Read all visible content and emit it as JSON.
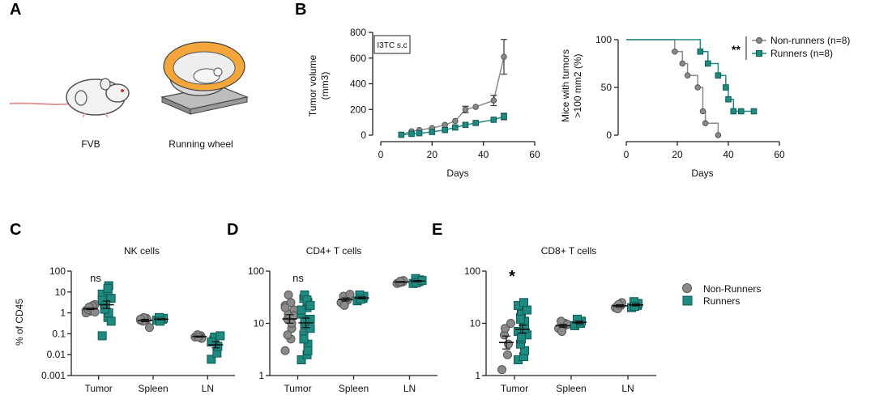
{
  "panels": {
    "A": {
      "letter": "A",
      "caption_fvb": "FVB",
      "caption_wheel": "Running wheel"
    },
    "B": {
      "letter": "B"
    },
    "C": {
      "letter": "C"
    },
    "D": {
      "letter": "D"
    },
    "E": {
      "letter": "E"
    }
  },
  "legend_bottom": {
    "nonrunners": "Non-Runners",
    "runners": "Runners"
  },
  "colors": {
    "nonrunners": "#8a8a8a",
    "runners": "#1e8a80",
    "axis": "#222222"
  },
  "chart_data": [
    {
      "id": "tumor-volume",
      "type": "line",
      "title": "",
      "annotation": "I3TC s.c",
      "xlabel": "Days",
      "ylabel_line1": "Tumor volume",
      "ylabel_line2": "(mm3)",
      "xlim": [
        0,
        60
      ],
      "ylim": [
        0,
        800
      ],
      "xticks": [
        0,
        20,
        40,
        60
      ],
      "yticks": [
        0,
        200,
        400,
        600,
        800
      ],
      "series": [
        {
          "name": "Non-runners",
          "x": [
            8,
            12,
            15,
            20,
            25,
            29,
            33,
            37,
            44,
            48
          ],
          "y": [
            3,
            30,
            40,
            55,
            80,
            110,
            200,
            220,
            270,
            610
          ],
          "err": [
            0,
            0,
            0,
            0,
            0,
            0,
            25,
            0,
            40,
            135
          ]
        },
        {
          "name": "Runners",
          "x": [
            8,
            12,
            15,
            20,
            25,
            29,
            33,
            37,
            44,
            48
          ],
          "y": [
            3,
            10,
            15,
            25,
            40,
            60,
            80,
            95,
            120,
            145
          ],
          "err": [
            0,
            0,
            0,
            0,
            0,
            0,
            0,
            0,
            0,
            25
          ]
        }
      ]
    },
    {
      "id": "survival",
      "type": "line",
      "title": "",
      "xlabel": "Days",
      "ylabel_line1": "Mice with tumors",
      "ylabel_line2": ">100 mm2 (%)",
      "xlim": [
        0,
        60
      ],
      "ylim": [
        0,
        100
      ],
      "xticks": [
        0,
        20,
        40,
        60
      ],
      "yticks": [
        0,
        50,
        100
      ],
      "significance": "**",
      "legend": [
        "Non-runners (n=8)",
        "Runners (n=8)"
      ],
      "series": [
        {
          "name": "Non-runners (n=8)",
          "x": [
            0,
            19,
            22,
            24,
            28,
            30,
            31,
            36
          ],
          "y": [
            100,
            87.5,
            75,
            62.5,
            50,
            25,
            12.5,
            0
          ]
        },
        {
          "name": "Runners (n=8)",
          "x": [
            0,
            29,
            32,
            36,
            39,
            40,
            42,
            45,
            50
          ],
          "y": [
            100,
            87.5,
            75,
            62.5,
            50,
            37.5,
            25,
            25,
            25
          ]
        }
      ]
    },
    {
      "id": "nk-cells",
      "type": "scatter",
      "title": "NK cells",
      "ylabel": "% of CD45",
      "yscale": "log",
      "ylim": [
        0.001,
        100
      ],
      "ytick_labels": [
        "0.001",
        "0.01",
        "0.1",
        "1",
        "10",
        "100"
      ],
      "categories": [
        "Tumor",
        "Spleen",
        "LN"
      ],
      "significance": "ns",
      "series": [
        {
          "name": "Non-Runners",
          "values": [
            [
              1.3,
              1.8,
              2.0,
              1.5,
              1.2,
              2.5,
              1.0,
              1.6,
              2.2,
              1.4,
              1.9,
              1.1
            ],
            [
              0.45,
              0.55,
              0.5,
              0.4,
              0.6,
              0.2,
              0.5
            ],
            [
              0.07,
              0.08,
              0.06,
              0.09,
              0.07
            ]
          ]
        },
        {
          "name": "Runners",
          "values": [
            [
              0.08,
              0.6,
              1.0,
              2.0,
              3.5,
              5.0,
              8.0,
              12.0,
              20.0,
              1.5,
              2.5,
              0.4,
              4.0,
              15.0
            ],
            [
              0.45,
              0.5,
              0.55,
              0.6,
              0.4
            ],
            [
              0.006,
              0.012,
              0.025,
              0.05,
              0.07,
              0.08,
              0.04
            ]
          ]
        }
      ]
    },
    {
      "id": "cd4-t-cells",
      "type": "scatter",
      "title": "CD4+ T cells",
      "ylabel": "",
      "yscale": "log",
      "ylim": [
        1,
        100
      ],
      "ytick_labels": [
        "1",
        "10",
        "100"
      ],
      "categories": [
        "Tumor",
        "Spleen",
        "LN"
      ],
      "significance": "ns",
      "series": [
        {
          "name": "Non-Runners",
          "values": [
            [
              3,
              5,
              8,
              12,
              15,
              18,
              22,
              25,
              10,
              6,
              35,
              14,
              20
            ],
            [
              25,
              30,
              28,
              33,
              22,
              36
            ],
            [
              58,
              62,
              66,
              60,
              64
            ]
          ]
        },
        {
          "name": "Runners",
          "values": [
            [
              2,
              2.5,
              4,
              6,
              9,
              12,
              15,
              20,
              25,
              30,
              35,
              8,
              18,
              28,
              3,
              5,
              11,
              22
            ],
            [
              27,
              30,
              33,
              35,
              29
            ],
            [
              58,
              63,
              68,
              72,
              60,
              66
            ]
          ]
        }
      ]
    },
    {
      "id": "cd8-t-cells",
      "type": "scatter",
      "title": "CD8+ T cells",
      "ylabel": "",
      "yscale": "log",
      "ylim": [
        1,
        100
      ],
      "ytick_labels": [
        "1",
        "10",
        "100"
      ],
      "categories": [
        "Tumor",
        "Spleen",
        "LN"
      ],
      "significance": "*",
      "series": [
        {
          "name": "Non-Runners",
          "values": [
            [
              1.3,
              2.5,
              4,
              6,
              8,
              10
            ],
            [
              8,
              9,
              10,
              11,
              7,
              9.5
            ],
            [
              20,
              22,
              25,
              19,
              23
            ]
          ]
        },
        {
          "name": "Runners",
          "values": [
            [
              2,
              2.3,
              3,
              4,
              5,
              6,
              7,
              9,
              11,
              13,
              15,
              18,
              22,
              25,
              8,
              12,
              5.5
            ],
            [
              9,
              10,
              11,
              12
            ],
            [
              20,
              22,
              24,
              26,
              21
            ]
          ]
        }
      ]
    }
  ]
}
